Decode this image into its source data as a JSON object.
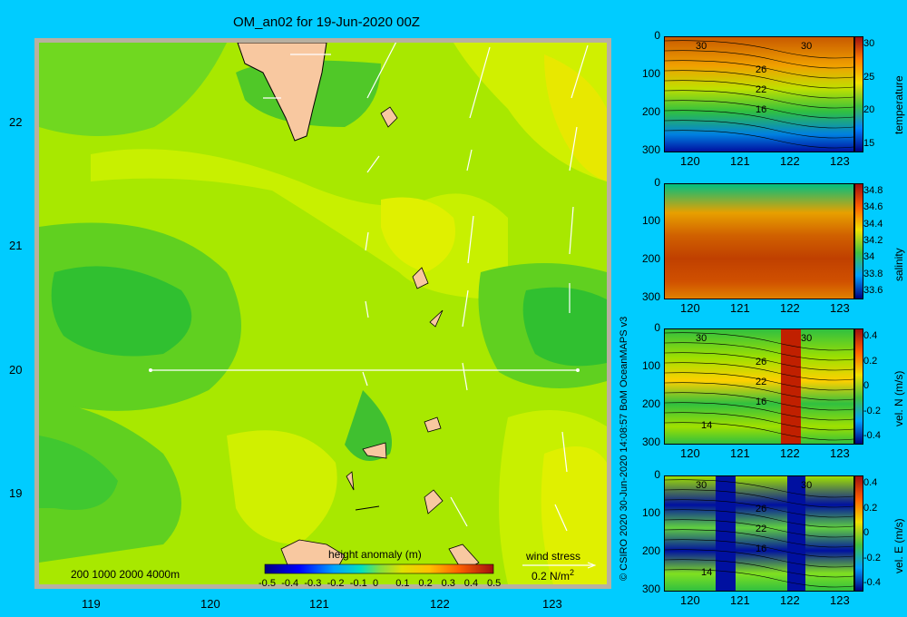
{
  "title": "OM_an02 for 19-Jun-2020 00Z",
  "map": {
    "x_ticks": [
      "119",
      "120",
      "121",
      "122",
      "123"
    ],
    "y_ticks": [
      "22",
      "21",
      "20",
      "19"
    ],
    "depth_legend": "200  1000  2000  4000m",
    "colorbar_title": "height anomaly (m)",
    "colorbar_ticks": [
      "-0.5",
      "-0.4",
      "-0.3",
      "-0.2",
      "-0.1",
      "0",
      "0.1",
      "0.2",
      "0.3",
      "0.4",
      "0.5"
    ],
    "wind_label": "wind stress",
    "wind_scale": "0.2 N/m",
    "wind_scale_sup": "2",
    "section_line": {
      "lon": [
        119.5,
        123.2
      ],
      "lat": 20.0
    }
  },
  "panels": [
    {
      "ylabel": "temperature",
      "y_ticks": [
        "0",
        "100",
        "200",
        "300"
      ],
      "x_ticks": [
        "120",
        "121",
        "122",
        "123"
      ],
      "cbar_ticks": [
        "30",
        "25",
        "20",
        "15"
      ],
      "contour_labels": [
        "30",
        "30",
        "26",
        "22",
        "16"
      ]
    },
    {
      "ylabel": "salinity",
      "y_ticks": [
        "0",
        "100",
        "200",
        "300"
      ],
      "x_ticks": [
        "120",
        "121",
        "122",
        "123"
      ],
      "cbar_ticks": [
        "34.8",
        "34.6",
        "34.4",
        "34.2",
        "34",
        "33.8",
        "33.6"
      ],
      "contour_labels": []
    },
    {
      "ylabel": "vel. N (m/s)",
      "y_ticks": [
        "0",
        "100",
        "200",
        "300"
      ],
      "x_ticks": [
        "120",
        "121",
        "122",
        "123"
      ],
      "cbar_ticks": [
        "0.4",
        "0.2",
        "0",
        "-0.2",
        "-0.4"
      ],
      "contour_labels": [
        "30",
        "30",
        "26",
        "22",
        "16",
        "14"
      ]
    },
    {
      "ylabel": "vel. E (m/s)",
      "y_ticks": [
        "0",
        "100",
        "200",
        "300"
      ],
      "x_ticks": [
        "120",
        "121",
        "122",
        "123"
      ],
      "cbar_ticks": [
        "0.4",
        "0.2",
        "0",
        "-0.2",
        "-0.4"
      ],
      "contour_labels": [
        "30",
        "30",
        "26",
        "22",
        "16",
        "14"
      ]
    }
  ],
  "credit": "© CSIRO 2020  30-Jun-2020 14:08:57 BoM OceanMAPS v3"
}
